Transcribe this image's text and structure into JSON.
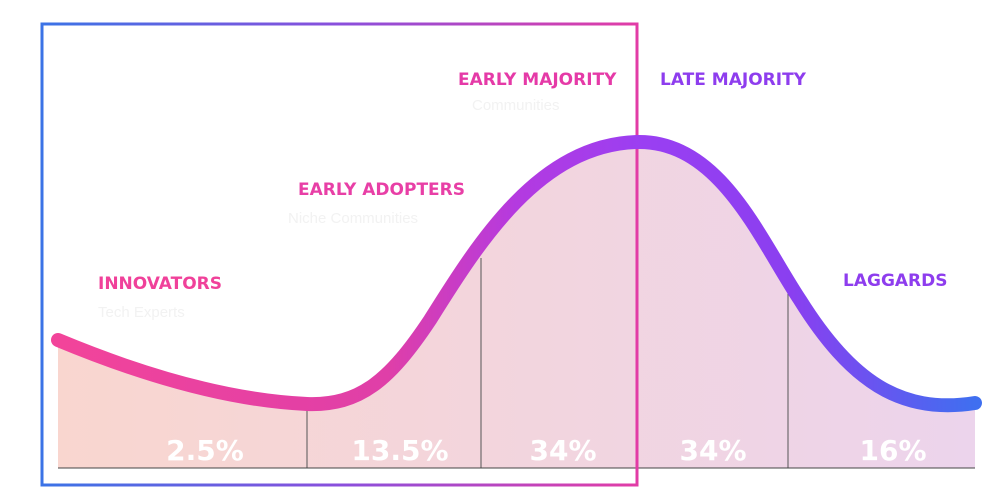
{
  "chart_data": {
    "type": "area",
    "title": "",
    "categories": [
      "Innovators",
      "Early Adopters",
      "Early Majority",
      "Late Majority",
      "Laggards"
    ],
    "segments": [
      {
        "name": "INNOVATORS",
        "subtitle": "Tech Experts",
        "value": "2.5%",
        "color": "#f0419a"
      },
      {
        "name": "EARLY ADOPTERS",
        "subtitle": "Niche Communities",
        "value": "13.5%",
        "color": "#e83fa6"
      },
      {
        "name": "EARLY MAJORITY",
        "subtitle": "Communities",
        "value": "34%",
        "color": "#e53aa7"
      },
      {
        "name": "LATE MAJORITY",
        "subtitle": "",
        "value": "34%",
        "color": "#8e3dee"
      },
      {
        "name": "LAGGARDS",
        "subtitle": "",
        "value": "16%",
        "color": "#8e3dee"
      }
    ],
    "colors": {
      "curve_start": "#f2449a",
      "curve_mid": "#b43ae0",
      "curve_peak": "#9a3ff2",
      "curve_end": "#3f6ff0",
      "fill_left": "#f9d6cf",
      "fill_right": "#ecd4ec",
      "frame_blue": "#3b73e6",
      "frame_pink": "#e23ca6",
      "subtitle_text": "#f2f2f2",
      "value_text": "#ffffff"
    }
  }
}
